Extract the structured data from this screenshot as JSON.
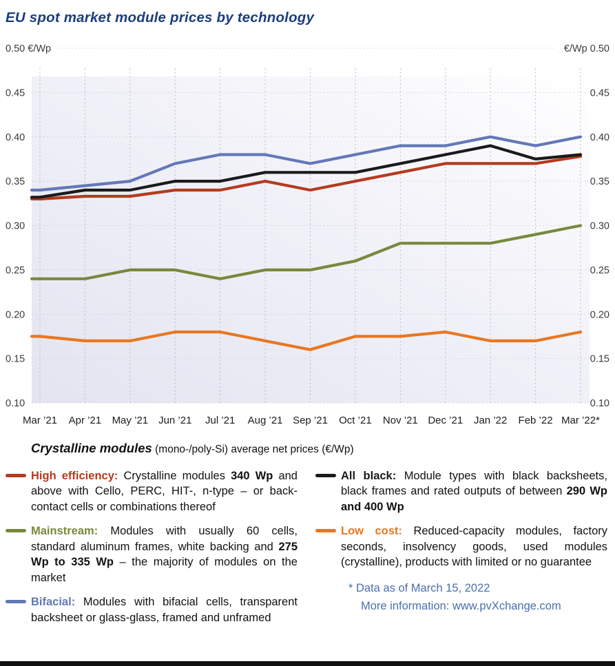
{
  "title": "EU spot market module prices by technology",
  "colors": {
    "title": "#1b3e7e",
    "footnote": "#4a6fad",
    "high_efficiency": "#b53a1e",
    "mainstream": "#76893c",
    "bifacial": "#6378b8",
    "all_black": "#1a1a1a",
    "low_cost": "#e87722"
  },
  "chart_data": {
    "type": "line",
    "title": "EU spot market module prices by technology",
    "xlabel": "",
    "ylabel": "€/Wp",
    "unit": "€/Wp",
    "ylim": [
      0.1,
      0.5
    ],
    "y_ticks": [
      0.5,
      0.45,
      0.4,
      0.35,
      0.3,
      0.25,
      0.2,
      0.15,
      0.1
    ],
    "grid": "dotted",
    "legend_position": "below",
    "categories": [
      "Mar ’21",
      "Apr ’21",
      "May ’21",
      "Jun ’21",
      "Jul ’21",
      "Aug ’21",
      "Sep ’21",
      "Oct ’21",
      "Nov ’21",
      "Dec ’21",
      "Jan ’22",
      "Feb ’22",
      "Mar ’22*"
    ],
    "series": [
      {
        "name": "Low cost",
        "color": "#e87722",
        "values": [
          0.175,
          0.17,
          0.17,
          0.18,
          0.18,
          0.17,
          0.16,
          0.175,
          0.175,
          0.18,
          0.17,
          0.17,
          0.18
        ]
      },
      {
        "name": "Mainstream",
        "color": "#76893c",
        "values": [
          0.24,
          0.24,
          0.25,
          0.25,
          0.24,
          0.25,
          0.25,
          0.26,
          0.28,
          0.28,
          0.28,
          0.29,
          0.3
        ]
      },
      {
        "name": "High efficiency",
        "color": "#b53a1e",
        "values": [
          0.33,
          0.333,
          0.333,
          0.34,
          0.34,
          0.35,
          0.34,
          0.35,
          0.36,
          0.37,
          0.37,
          0.37,
          0.378
        ]
      },
      {
        "name": "All black",
        "color": "#1a1a1a",
        "values": [
          0.332,
          0.34,
          0.34,
          0.35,
          0.35,
          0.36,
          0.36,
          0.36,
          0.37,
          0.38,
          0.39,
          0.375,
          0.38
        ]
      },
      {
        "name": "Bifacial",
        "color": "#6378b8",
        "values": [
          0.34,
          0.345,
          0.35,
          0.37,
          0.38,
          0.38,
          0.37,
          0.38,
          0.39,
          0.39,
          0.4,
          0.39,
          0.4
        ]
      }
    ]
  },
  "subtitle": {
    "bold": "Crystalline modules",
    "rest": " (mono-/poly-Si) average net prices (€/Wp)"
  },
  "legend": {
    "columns": [
      {
        "items": [
          {
            "name": "High efficiency",
            "marker_color": "#b53a1e",
            "runs": [
              {
                "t": "High efficiency: ",
                "b": true,
                "c": "#b53a1e"
              },
              {
                "t": "Crystalline modules ",
                "b": false
              },
              {
                "t": "340 Wp",
                "b": true
              },
              {
                "t": " and above with Cello, PERC, HIT-, n-type – or back-contact cells or combinations thereof",
                "b": false
              }
            ]
          },
          {
            "name": "Mainstream",
            "marker_color": "#76893c",
            "runs": [
              {
                "t": "Mainstream: ",
                "b": true,
                "c": "#76893c"
              },
              {
                "t": "Modules with usually 60 cells, standard aluminum frames, white backing and ",
                "b": false
              },
              {
                "t": "275 Wp to 335 Wp",
                "b": true
              },
              {
                "t": " – the majority of modules on the market",
                "b": false
              }
            ]
          },
          {
            "name": "Bifacial",
            "marker_color": "#6378b8",
            "runs": [
              {
                "t": "Bifacial: ",
                "b": true,
                "c": "#6378b8"
              },
              {
                "t": "Modules with bifacial cells, transparent backsheet or glass-glass, framed and unframed",
                "b": false
              }
            ]
          }
        ]
      },
      {
        "items": [
          {
            "name": "All black",
            "marker_color": "#1a1a1a",
            "runs": [
              {
                "t": "All black: ",
                "b": true,
                "c": "#1a1a1a"
              },
              {
                "t": "Module types with black backsheets, black frames and rated outputs of between ",
                "b": false
              },
              {
                "t": "290 Wp and 400 Wp",
                "b": true
              }
            ]
          },
          {
            "name": "Low cost",
            "marker_color": "#e87722",
            "runs": [
              {
                "t": "Low cost: ",
                "b": true,
                "c": "#e87722"
              },
              {
                "t": "Reduced-capacity modules, factory seconds, insolvency goods, used modules (crystalline), products with limited or no guarantee",
                "b": false
              }
            ]
          }
        ]
      }
    ],
    "footnote": "* Data as of March 15, 2022",
    "more_info": "More information: www.pvXchange.com"
  }
}
